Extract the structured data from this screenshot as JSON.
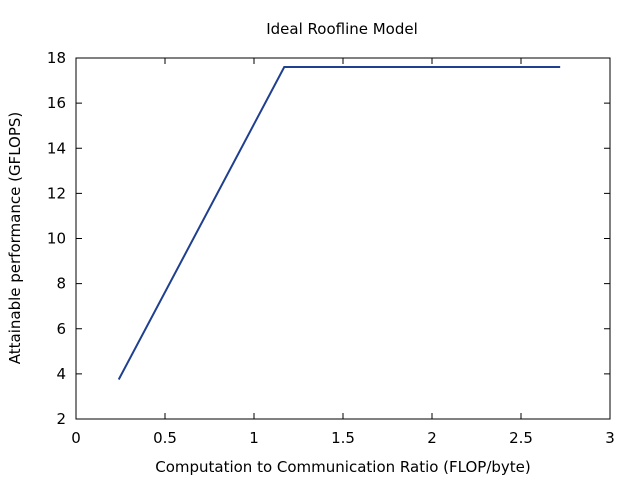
{
  "chart_data": {
    "type": "line",
    "title": "Ideal Roofline Model",
    "xlabel": "Computation to Communication Ratio (FLOP/byte)",
    "ylabel": "Attainable performance (GFLOPS)",
    "xlim": [
      0,
      3
    ],
    "ylim": [
      2,
      18
    ],
    "xticks": [
      0,
      0.5,
      1,
      1.5,
      2,
      2.5,
      3
    ],
    "yticks": [
      2,
      4,
      6,
      8,
      10,
      12,
      14,
      16,
      18
    ],
    "xtick_labels": [
      "0",
      "0.5",
      "1",
      "1.5",
      "2",
      "2.5",
      "3"
    ],
    "ytick_labels": [
      "2",
      "4",
      "6",
      "8",
      "10",
      "12",
      "14",
      "16",
      "18"
    ],
    "grid": false,
    "series": [
      {
        "color": "#1f3f8f",
        "x": [
          0.24,
          1.17,
          2.72
        ],
        "y": [
          3.75,
          17.6,
          17.6
        ]
      }
    ]
  }
}
